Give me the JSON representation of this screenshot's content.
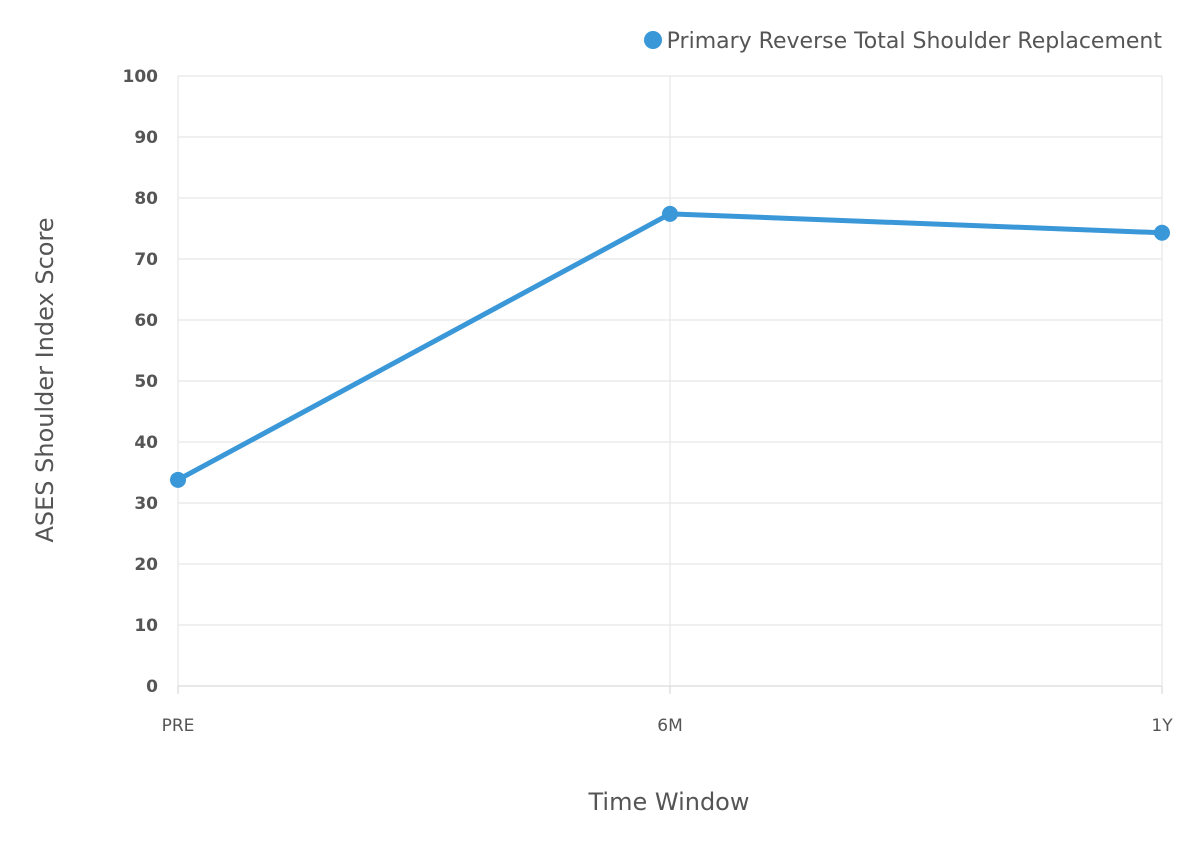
{
  "chart_data": {
    "type": "line",
    "title": "",
    "xlabel": "Time Window",
    "ylabel": "ASES Shoulder Index Score",
    "categories": [
      "PRE",
      "6M",
      "1Y"
    ],
    "ylim": [
      0,
      100
    ],
    "yticks": [
      0,
      10,
      20,
      30,
      40,
      50,
      60,
      70,
      80,
      90,
      100
    ],
    "grid": true,
    "legend_position": "top-right",
    "series": [
      {
        "name": "Primary Reverse Total Shoulder Replacement",
        "color": "#3a97d8",
        "values": [
          33.8,
          77.4,
          74.3
        ]
      }
    ]
  }
}
